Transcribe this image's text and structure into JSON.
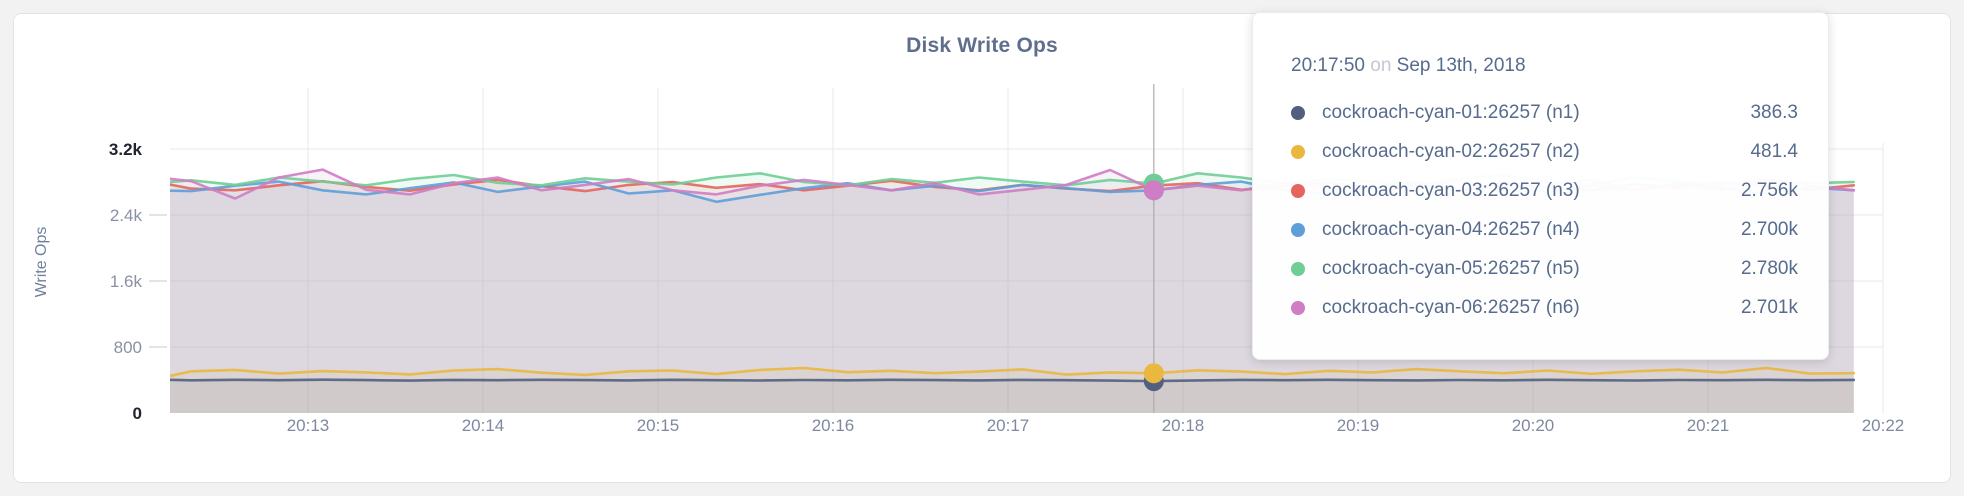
{
  "panel": {
    "title": "Disk Write Ops"
  },
  "tooltip": {
    "time": "20:17:50",
    "separator": "on",
    "date": "Sep 13th, 2018",
    "rows": [
      {
        "name": "cockroach-cyan-01:26257 (n1)",
        "value": "386.3",
        "color": "#525f7f"
      },
      {
        "name": "cockroach-cyan-02:26257 (n2)",
        "value": "481.4",
        "color": "#eab73f"
      },
      {
        "name": "cockroach-cyan-03:26257 (n3)",
        "value": "2.756k",
        "color": "#e5655e"
      },
      {
        "name": "cockroach-cyan-04:26257 (n4)",
        "value": "2.700k",
        "color": "#5f9fd9"
      },
      {
        "name": "cockroach-cyan-05:26257 (n5)",
        "value": "2.780k",
        "color": "#6fce96"
      },
      {
        "name": "cockroach-cyan-06:26257 (n6)",
        "value": "2.701k",
        "color": "#cf7dc4"
      }
    ]
  },
  "chart_data": {
    "type": "line",
    "title": "Disk Write Ops",
    "ylabel": "Write Ops",
    "ylim": [
      0,
      3200
    ],
    "grid": true,
    "x_tick_labels": [
      "20:13",
      "20:14",
      "20:15",
      "20:16",
      "20:17",
      "20:18",
      "20:19",
      "20:20",
      "20:21",
      "20:22"
    ],
    "y_tick_labels": [
      "0",
      "800",
      "1.6k",
      "2.4k",
      "3.2k"
    ],
    "y_tick_values": [
      0,
      800,
      1600,
      2400,
      3200
    ],
    "x_start_min": 12.0833,
    "x_step_min": 0.25,
    "hover": {
      "index": 23,
      "time": "20:17:50",
      "date": "Sep 13th, 2018",
      "values": [
        386.3,
        481.4,
        2756,
        2700,
        2780,
        2701
      ]
    },
    "series": [
      {
        "name": "cockroach-cyan-01:26257 (n1)",
        "color": "#525f7f",
        "values": [
          408,
          396,
          402,
          398,
          404,
          399,
          393,
          401,
          397,
          403,
          399,
          395,
          402,
          398,
          394,
          400,
          396,
          403,
          399,
          395,
          401,
          397,
          393,
          386.3,
          395,
          401,
          397,
          402,
          398,
          395,
          400,
          396,
          402,
          398,
          394,
          400,
          397,
          402,
          398,
          401
        ]
      },
      {
        "name": "cockroach-cyan-02:26257 (n2)",
        "color": "#eab73f",
        "values": [
          390,
          505,
          522,
          478,
          508,
          492,
          468,
          515,
          532,
          488,
          462,
          505,
          515,
          472,
          522,
          545,
          495,
          512,
          482,
          502,
          528,
          465,
          492,
          481.4,
          518,
          502,
          472,
          512,
          492,
          532,
          505,
          482,
          515,
          475,
          505,
          525,
          492,
          545,
          478,
          482
        ]
      },
      {
        "name": "cockroach-cyan-03:26257 (n3)",
        "color": "#e5655e",
        "values": [
          2820,
          2720,
          2700,
          2760,
          2810,
          2740,
          2695,
          2770,
          2825,
          2750,
          2690,
          2765,
          2800,
          2730,
          2775,
          2700,
          2755,
          2815,
          2740,
          2700,
          2765,
          2720,
          2690,
          2756,
          2785,
          2705,
          2745,
          2795,
          2730,
          2765,
          2700,
          2785,
          2740,
          2700,
          2775,
          2730,
          2795,
          2750,
          2705,
          2760
        ]
      },
      {
        "name": "cockroach-cyan-04:26257 (n4)",
        "color": "#5f9fd9",
        "values": [
          2700,
          2690,
          2755,
          2805,
          2700,
          2650,
          2725,
          2795,
          2680,
          2745,
          2805,
          2660,
          2700,
          2560,
          2645,
          2725,
          2785,
          2700,
          2755,
          2690,
          2765,
          2725,
          2680,
          2700,
          2765,
          2805,
          2700,
          2650,
          2735,
          2795,
          2700,
          2745,
          2680,
          2755,
          2700,
          2785,
          2725,
          2660,
          2735,
          2700
        ]
      },
      {
        "name": "cockroach-cyan-05:26257 (n5)",
        "color": "#6fce96",
        "values": [
          2780,
          2820,
          2765,
          2855,
          2805,
          2760,
          2835,
          2885,
          2790,
          2760,
          2845,
          2805,
          2770,
          2855,
          2905,
          2800,
          2760,
          2835,
          2790,
          2855,
          2805,
          2760,
          2825,
          2780,
          2905,
          2855,
          2780,
          2835,
          2805,
          2760,
          2845,
          2885,
          2800,
          2770,
          2855,
          2805,
          2760,
          2825,
          2785,
          2800
        ]
      },
      {
        "name": "cockroach-cyan-06:26257 (n6)",
        "color": "#cf7dc4",
        "values": [
          2870,
          2810,
          2600,
          2855,
          2950,
          2705,
          2650,
          2785,
          2855,
          2700,
          2765,
          2835,
          2700,
          2650,
          2755,
          2825,
          2765,
          2700,
          2785,
          2650,
          2705,
          2765,
          2945,
          2701,
          2755,
          2700,
          2785,
          2725,
          2650,
          2765,
          2805,
          2700,
          2755,
          2825,
          2700,
          2765,
          2705,
          2825,
          2755,
          2700
        ]
      }
    ]
  }
}
